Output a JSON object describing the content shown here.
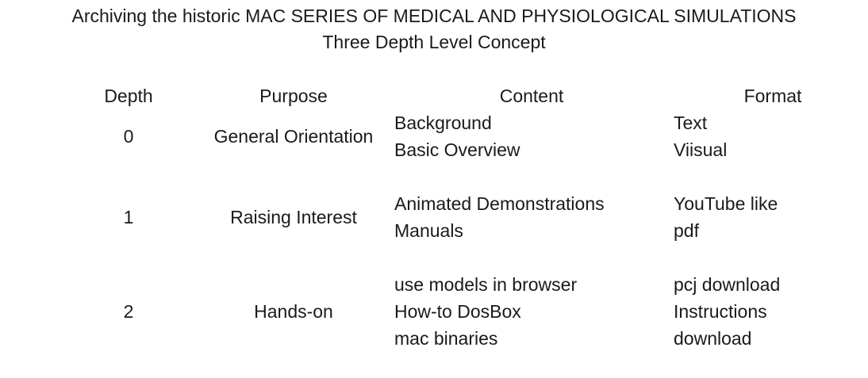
{
  "title": {
    "line1": "Archiving the historic MAC SERIES OF MEDICAL AND PHYSIOLOGICAL SIMULATIONS",
    "line2": "Three Depth Level Concept"
  },
  "table": {
    "headers": {
      "depth": "Depth",
      "purpose": "Purpose",
      "content": "Content",
      "format": "Format"
    },
    "rows": [
      {
        "depth": "0",
        "purpose": "General Orientation",
        "content": [
          "Background",
          "Basic Overview"
        ],
        "format": [
          "Text",
          "Viisual"
        ]
      },
      {
        "depth": "1",
        "purpose": "Raising Interest",
        "content": [
          "Animated Demonstrations",
          "Manuals"
        ],
        "format": [
          "YouTube like",
          "pdf"
        ]
      },
      {
        "depth": "2",
        "purpose": "Hands-on",
        "content": [
          "use models in browser",
          "How-to DosBox",
          "mac binaries"
        ],
        "format": [
          "pcj download",
          "Instructions",
          "download"
        ]
      }
    ]
  }
}
